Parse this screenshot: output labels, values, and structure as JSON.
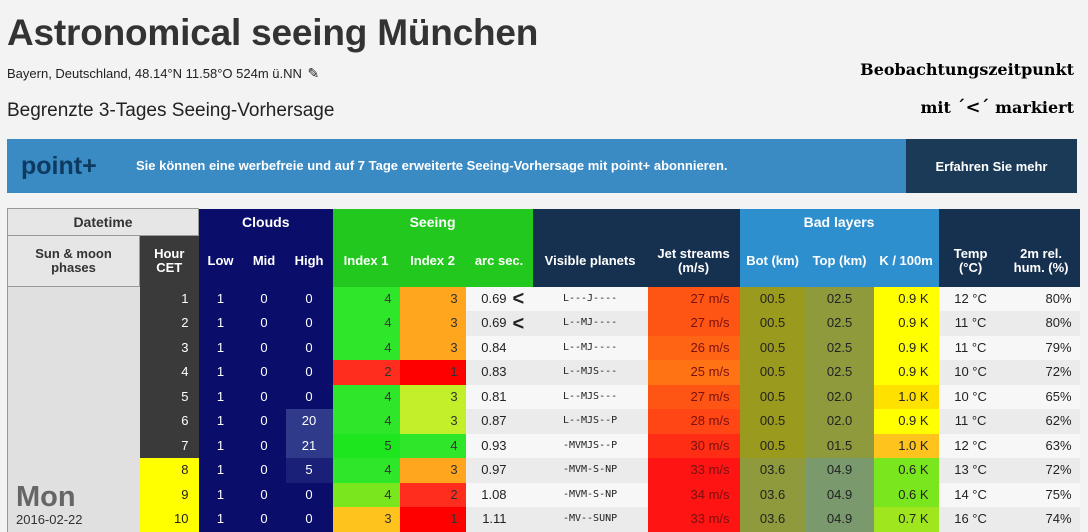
{
  "header": {
    "title": "Astronomical seeing München",
    "location": "Bayern, Deutschland, 48.14°N 11.58°O 524m ü.NN",
    "edit_icon": "edit-icon",
    "subtitle": "Begrenzte 3-Tages Seeing-Vorhersage",
    "note_line1": "Beobachtungszeitpunkt",
    "note_line2_a": "mit ",
    "note_line2_mark": "´<´",
    "note_line2_b": " markiert"
  },
  "banner": {
    "brand": "point+",
    "message": "Sie können eine werbefreie und auf 7 Tage erweiterte Seeing-Vorhersage mit point+ abonnieren.",
    "cta": "Erfahren Sie mehr"
  },
  "table": {
    "groups": {
      "datetime": "Datetime",
      "clouds": "Clouds",
      "seeing": "Seeing",
      "bad_layers": "Bad layers"
    },
    "columns": {
      "phases": "Sun & moon phases",
      "hour": "Hour CET",
      "low": "Low",
      "mid": "Mid",
      "high": "High",
      "index1": "Index 1",
      "index2": "Index 2",
      "arc": "arc sec.",
      "planets": "Visible planets",
      "jet": "Jet streams (m/s)",
      "bot": "Bot (km)",
      "top": "Top (km)",
      "k": "K / 100m",
      "temp": "Temp (°C)",
      "hum": "2m rel. hum. (%)"
    },
    "day": {
      "name": "Mon",
      "date": "2016-02-22"
    },
    "rows": [
      {
        "hour": "1",
        "low": "1",
        "mid": "0",
        "high": "0",
        "i1": "4",
        "i2": "3",
        "arc": "0.69",
        "mark": "<",
        "planets": "L---J----",
        "jet": "27 m/s",
        "bot": "00.5",
        "top": "02.5",
        "k": "0.9 K",
        "temp": "12 °C",
        "hum": "80%",
        "hour_bg": "#3a3a3a",
        "hour_fg": "#ffffff",
        "high_bg": "#0a0d6a",
        "i1_bg": "#2ee62a",
        "i2_bg": "#ffa51e",
        "jet_bg": "#ff5514",
        "bot_bg": "#9a9a1e",
        "top_bg": "#8f9a3c",
        "k_bg": "#ffff00"
      },
      {
        "hour": "2",
        "low": "1",
        "mid": "0",
        "high": "0",
        "i1": "4",
        "i2": "3",
        "arc": "0.69",
        "mark": "<",
        "planets": "L--MJ----",
        "jet": "27 m/s",
        "bot": "00.5",
        "top": "02.5",
        "k": "0.9 K",
        "temp": "11 °C",
        "hum": "80%",
        "hour_bg": "#3a3a3a",
        "hour_fg": "#ffffff",
        "high_bg": "#0a0d6a",
        "i1_bg": "#2ee62a",
        "i2_bg": "#ffa51e",
        "jet_bg": "#ff5514",
        "bot_bg": "#9a9a1e",
        "top_bg": "#8f9a3c",
        "k_bg": "#ffff00"
      },
      {
        "hour": "3",
        "low": "1",
        "mid": "0",
        "high": "0",
        "i1": "4",
        "i2": "3",
        "arc": "0.84",
        "mark": "",
        "planets": "L--MJ----",
        "jet": "26 m/s",
        "bot": "00.5",
        "top": "02.5",
        "k": "0.9 K",
        "temp": "11 °C",
        "hum": "79%",
        "hour_bg": "#3a3a3a",
        "hour_fg": "#ffffff",
        "high_bg": "#0a0d6a",
        "i1_bg": "#2ee62a",
        "i2_bg": "#ffa51e",
        "jet_bg": "#ff6414",
        "bot_bg": "#9a9a1e",
        "top_bg": "#8f9a3c",
        "k_bg": "#ffff00"
      },
      {
        "hour": "4",
        "low": "1",
        "mid": "0",
        "high": "0",
        "i1": "2",
        "i2": "1",
        "arc": "0.83",
        "mark": "",
        "planets": "L--MJS---",
        "jet": "25 m/s",
        "bot": "00.5",
        "top": "02.5",
        "k": "0.9 K",
        "temp": "10 °C",
        "hum": "72%",
        "hour_bg": "#3a3a3a",
        "hour_fg": "#ffffff",
        "high_bg": "#0a0d6a",
        "i1_bg": "#ff2d1e",
        "i2_bg": "#ff0000",
        "jet_bg": "#ff7314",
        "bot_bg": "#9a9a1e",
        "top_bg": "#8f9a3c",
        "k_bg": "#ffff00"
      },
      {
        "hour": "5",
        "low": "1",
        "mid": "0",
        "high": "0",
        "i1": "4",
        "i2": "3",
        "arc": "0.81",
        "mark": "",
        "planets": "L--MJS---",
        "jet": "27 m/s",
        "bot": "00.5",
        "top": "02.0",
        "k": "1.0 K",
        "temp": "10 °C",
        "hum": "65%",
        "hour_bg": "#3a3a3a",
        "hour_fg": "#ffffff",
        "high_bg": "#0a0d6a",
        "i1_bg": "#2ee62a",
        "i2_bg": "#c3ee2a",
        "jet_bg": "#ff5514",
        "bot_bg": "#9a9a1e",
        "top_bg": "#8f9a3c",
        "k_bg": "#ffe100"
      },
      {
        "hour": "6",
        "low": "1",
        "mid": "0",
        "high": "20",
        "i1": "4",
        "i2": "3",
        "arc": "0.87",
        "mark": "",
        "planets": "L--MJS--P",
        "jet": "28 m/s",
        "bot": "00.5",
        "top": "02.0",
        "k": "0.9 K",
        "temp": "11 °C",
        "hum": "62%",
        "hour_bg": "#3a3a3a",
        "hour_fg": "#ffffff",
        "high_bg": "#2f3a8a",
        "i1_bg": "#2ee62a",
        "i2_bg": "#c3ee2a",
        "jet_bg": "#ff4614",
        "bot_bg": "#9a9a1e",
        "top_bg": "#8f9a3c",
        "k_bg": "#ffff00"
      },
      {
        "hour": "7",
        "low": "1",
        "mid": "0",
        "high": "21",
        "i1": "5",
        "i2": "4",
        "arc": "0.93",
        "mark": "",
        "planets": "-MVMJS--P",
        "jet": "30 m/s",
        "bot": "00.5",
        "top": "01.5",
        "k": "1.0 K",
        "temp": "12 °C",
        "hum": "63%",
        "hour_bg": "#3a3a3a",
        "hour_fg": "#ffffff",
        "high_bg": "#2f3a8a",
        "i1_bg": "#1ee61e",
        "i2_bg": "#2ee62a",
        "jet_bg": "#ff2d14",
        "bot_bg": "#9a9a1e",
        "top_bg": "#8f9a3c",
        "k_bg": "#ffc31e"
      },
      {
        "hour": "8",
        "low": "1",
        "mid": "0",
        "high": "5",
        "i1": "4",
        "i2": "3",
        "arc": "0.97",
        "mark": "",
        "planets": "-MVM-S-NP",
        "jet": "33 m/s",
        "bot": "03.6",
        "top": "04.9",
        "k": "0.6 K",
        "temp": "13 °C",
        "hum": "72%",
        "hour_bg": "#ffff00",
        "hour_fg": "#222222",
        "high_bg": "#1a1f78",
        "i1_bg": "#2ee62a",
        "i2_bg": "#ffa51e",
        "jet_bg": "#ff1414",
        "bot_bg": "#8f9a3c",
        "top_bg": "#7a9a6e",
        "k_bg": "#7ae61e"
      },
      {
        "hour": "9",
        "low": "1",
        "mid": "0",
        "high": "0",
        "i1": "4",
        "i2": "2",
        "arc": "1.08",
        "mark": "",
        "planets": "-MVM-S-NP",
        "jet": "34 m/s",
        "bot": "03.6",
        "top": "04.9",
        "k": "0.6 K",
        "temp": "14 °C",
        "hum": "75%",
        "hour_bg": "#ffff00",
        "hour_fg": "#222222",
        "high_bg": "#0a0d6a",
        "i1_bg": "#7ae61e",
        "i2_bg": "#ff2d1e",
        "jet_bg": "#ff1414",
        "bot_bg": "#8f9a3c",
        "top_bg": "#7a9a6e",
        "k_bg": "#7ae61e"
      },
      {
        "hour": "10",
        "low": "1",
        "mid": "0",
        "high": "0",
        "i1": "3",
        "i2": "1",
        "arc": "1.11",
        "mark": "",
        "planets": "-MV--SUNP",
        "jet": "33 m/s",
        "bot": "03.6",
        "top": "04.9",
        "k": "0.7 K",
        "temp": "16 °C",
        "hum": "74%",
        "hour_bg": "#ffff00",
        "hour_fg": "#222222",
        "high_bg": "#0a0d6a",
        "i1_bg": "#ffc31e",
        "i2_bg": "#ff0000",
        "jet_bg": "#ff1414",
        "bot_bg": "#8f9a3c",
        "top_bg": "#7a9a6e",
        "k_bg": "#a0e61e"
      }
    ]
  }
}
